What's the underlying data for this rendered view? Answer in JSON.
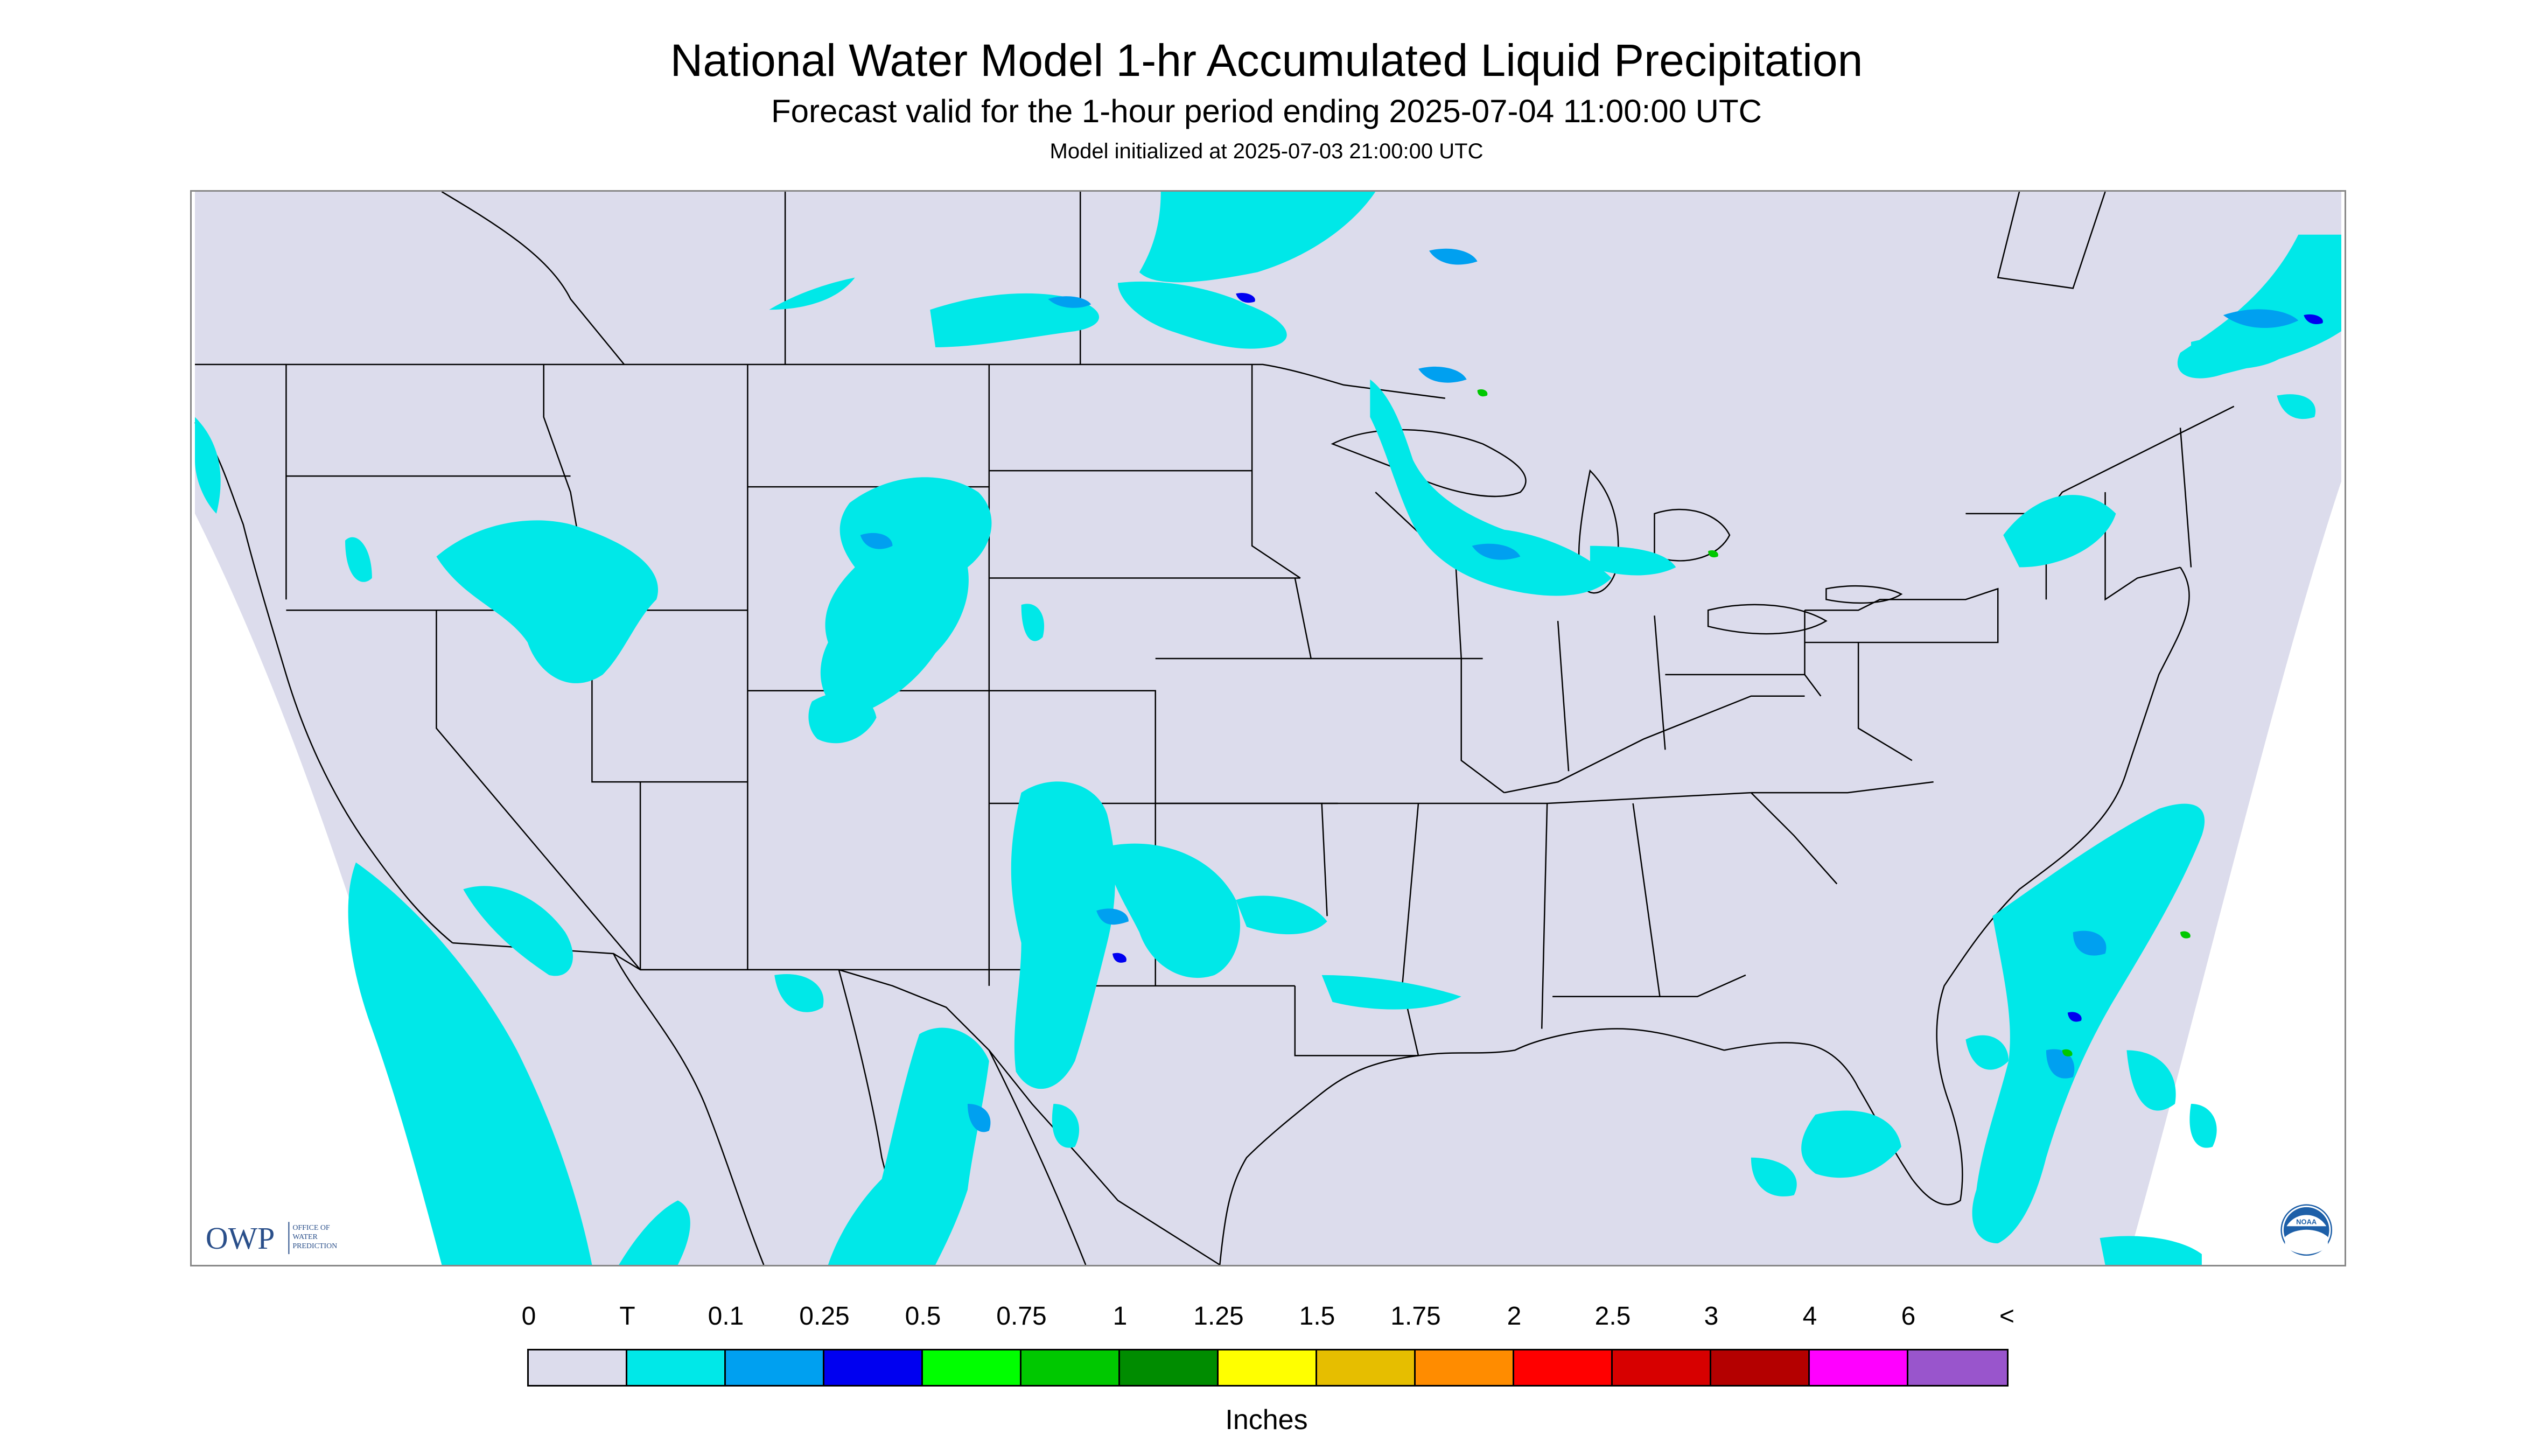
{
  "header": {
    "title": "National Water Model 1-hr Accumulated Liquid Precipitation",
    "subtitle": "Forecast valid for the 1-hour period ending 2025-07-04 11:00:00 UTC",
    "init": "Model initialized at 2025-07-03 21:00:00 UTC"
  },
  "map": {
    "background_color": "#dcdcec",
    "outside_color": "#ffffff",
    "boundary_color": "#000000"
  },
  "logos": {
    "owp": "OWP",
    "owp_sub": [
      "OFFICE OF",
      "WATER",
      "PREDICTION"
    ],
    "noaa": "NOAA"
  },
  "legend": {
    "labels": [
      "0",
      "T",
      "0.1",
      "0.25",
      "0.5",
      "0.75",
      "1",
      "1.25",
      "1.5",
      "1.75",
      "2",
      "2.5",
      "3",
      "4",
      "6",
      "<"
    ],
    "colors": [
      "#dcdcec",
      "#00e8e8",
      "#00a0f0",
      "#0000f0",
      "#00ff00",
      "#00c800",
      "#008c00",
      "#ffff00",
      "#e6be00",
      "#ff8c00",
      "#ff0000",
      "#d70000",
      "#b40000",
      "#ff00ff",
      "#9955cc"
    ],
    "units": "Inches"
  }
}
